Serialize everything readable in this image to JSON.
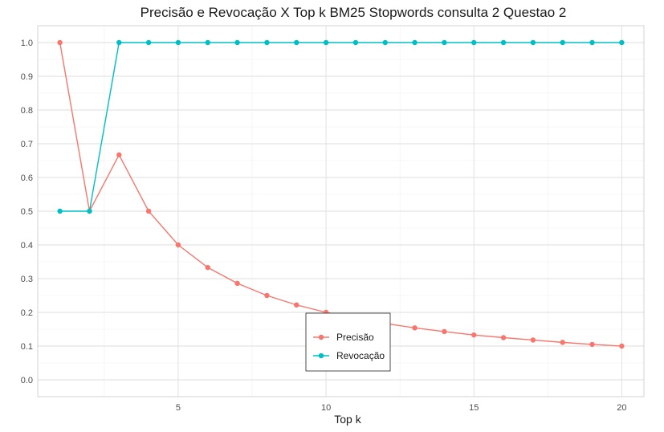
{
  "chart_data": {
    "type": "line",
    "title": "Precisão e Revocação X Top k BM25 Stopwords consulta 2 Questao 2",
    "xlabel": "Top k",
    "ylabel": "",
    "x": [
      1,
      2,
      3,
      4,
      5,
      6,
      7,
      8,
      9,
      10,
      11,
      12,
      13,
      14,
      15,
      16,
      17,
      18,
      19,
      20
    ],
    "xlim": [
      0.25,
      20.75
    ],
    "ylim": [
      -0.05,
      1.05
    ],
    "x_ticks": [
      5,
      10,
      15,
      20
    ],
    "y_ticks": [
      0.0,
      0.1,
      0.2,
      0.3,
      0.4,
      0.5,
      0.6,
      0.7,
      0.8,
      0.9,
      1.0
    ],
    "y_tick_labels": [
      "0.0",
      "0.1",
      "0.2",
      "0.3",
      "0.4",
      "0.5",
      "0.6",
      "0.7",
      "0.8",
      "0.9",
      "1.0"
    ],
    "grid": true,
    "legend_position": "inside-bottom-center",
    "series": [
      {
        "name": "Precisão",
        "color": "#F8766D",
        "values": [
          1.0,
          0.5,
          0.667,
          0.5,
          0.4,
          0.333,
          0.286,
          0.25,
          0.222,
          0.2,
          0.182,
          0.167,
          0.154,
          0.143,
          0.133,
          0.125,
          0.118,
          0.111,
          0.105,
          0.1
        ]
      },
      {
        "name": "Revocação",
        "color": "#00BFC4",
        "values": [
          0.5,
          0.5,
          1.0,
          1.0,
          1.0,
          1.0,
          1.0,
          1.0,
          1.0,
          1.0,
          1.0,
          1.0,
          1.0,
          1.0,
          1.0,
          1.0,
          1.0,
          1.0,
          1.0,
          1.0
        ]
      }
    ]
  }
}
